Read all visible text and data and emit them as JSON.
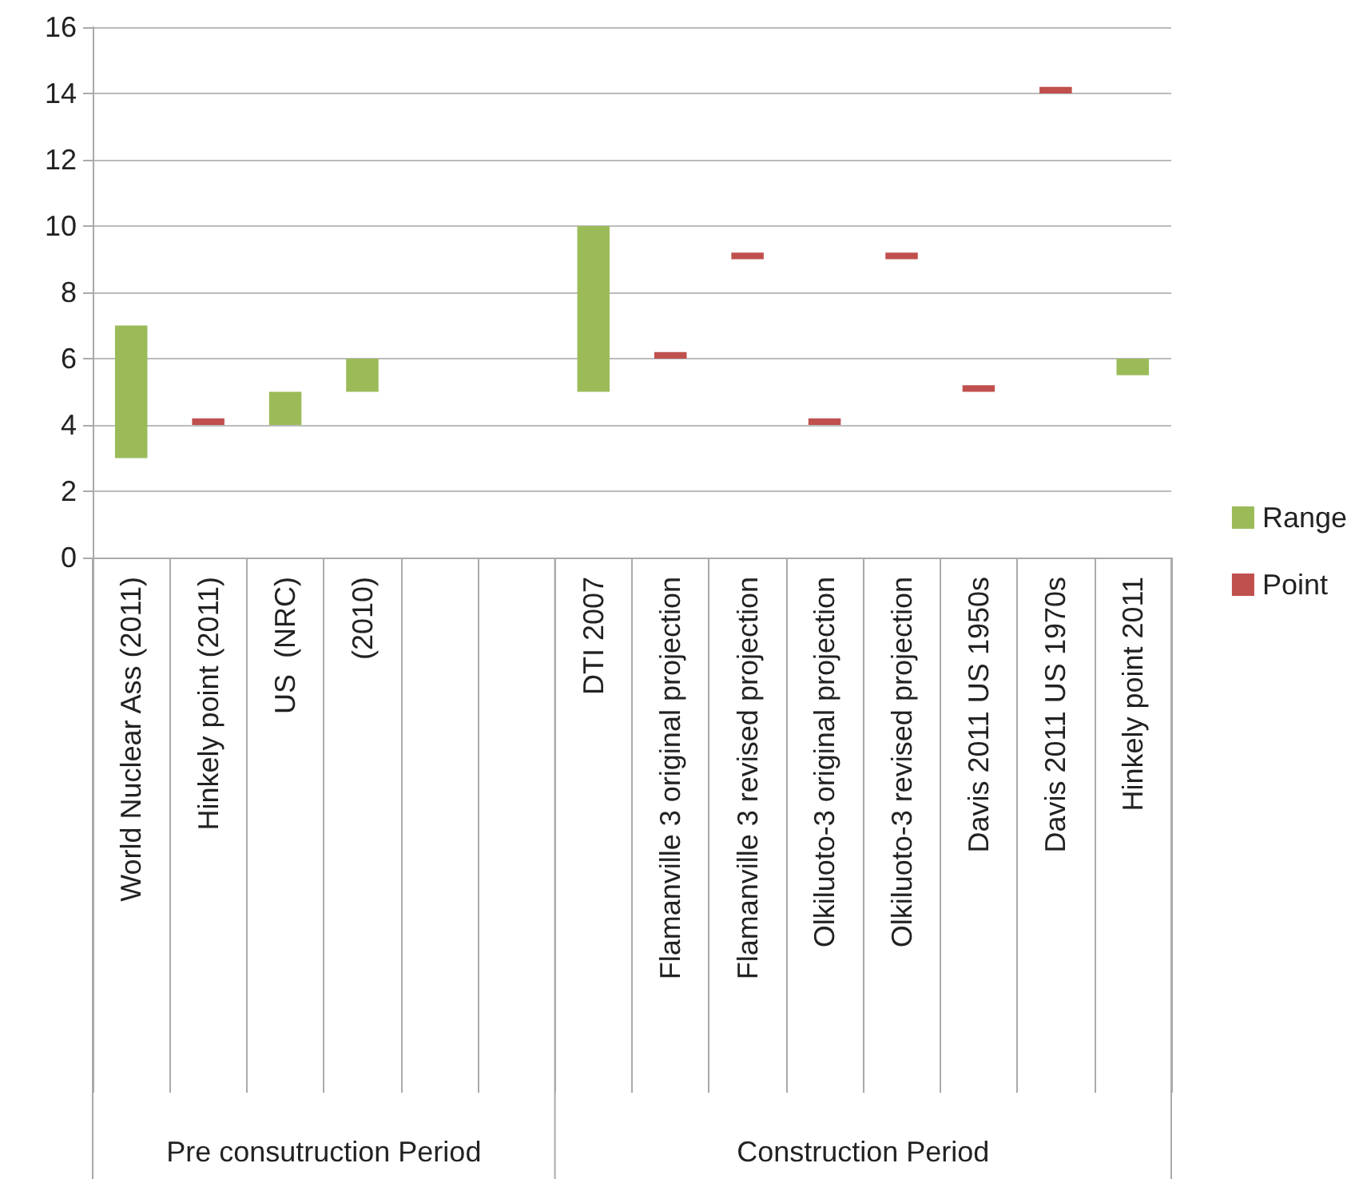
{
  "chart_data": {
    "type": "bar",
    "categories": [
      "World Nuclear Ass (2011)",
      "Hinkely point (2011)",
      "US  (NRC)",
      "(2010)",
      null,
      null,
      "DTI 2007",
      "Flamanville 3 original projection",
      "Flamanville 3 revised projection",
      "Olkiluoto-3 original projection",
      "Olkiluoto-3 revised projection",
      "Davis 2011 US 1950s",
      "Davis 2011 US 1970s",
      "Hinkely point 2011"
    ],
    "series": [
      {
        "name": "Range",
        "color": "#9bbb59",
        "base": [
          3,
          null,
          4,
          5,
          null,
          null,
          5,
          null,
          null,
          null,
          null,
          null,
          null,
          5.5
        ],
        "values": [
          4,
          null,
          1,
          1,
          null,
          null,
          5,
          null,
          null,
          null,
          null,
          null,
          null,
          0.5
        ]
      },
      {
        "name": "Point",
        "color": "#c0504d",
        "base": [
          null,
          4,
          null,
          null,
          null,
          null,
          null,
          6,
          9,
          4,
          9,
          5,
          14,
          null
        ],
        "values": [
          null,
          0.2,
          null,
          null,
          null,
          null,
          null,
          0.2,
          0.2,
          0.2,
          0.2,
          0.2,
          0.2,
          null
        ]
      }
    ],
    "ylim": [
      0,
      16
    ],
    "yticks": [
      0,
      2,
      4,
      6,
      8,
      10,
      12,
      14,
      16
    ],
    "grid": "y",
    "legend": "right",
    "annotations": [
      "Pre consutruction Period",
      "Construction Period"
    ]
  }
}
